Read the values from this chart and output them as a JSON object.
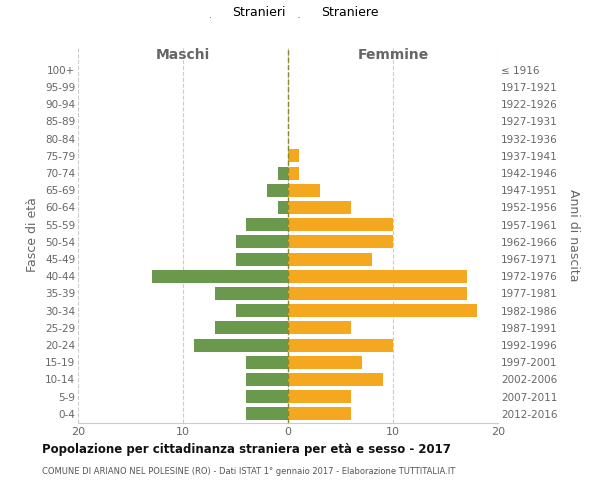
{
  "age_groups": [
    "0-4",
    "5-9",
    "10-14",
    "15-19",
    "20-24",
    "25-29",
    "30-34",
    "35-39",
    "40-44",
    "45-49",
    "50-54",
    "55-59",
    "60-64",
    "65-69",
    "70-74",
    "75-79",
    "80-84",
    "85-89",
    "90-94",
    "95-99",
    "100+"
  ],
  "birth_years": [
    "2012-2016",
    "2007-2011",
    "2002-2006",
    "1997-2001",
    "1992-1996",
    "1987-1991",
    "1982-1986",
    "1977-1981",
    "1972-1976",
    "1967-1971",
    "1962-1966",
    "1957-1961",
    "1952-1956",
    "1947-1951",
    "1942-1946",
    "1937-1941",
    "1932-1936",
    "1927-1931",
    "1922-1926",
    "1917-1921",
    "≤ 1916"
  ],
  "males": [
    4,
    4,
    4,
    4,
    9,
    7,
    5,
    7,
    13,
    5,
    5,
    4,
    1,
    2,
    1,
    0,
    0,
    0,
    0,
    0,
    0
  ],
  "females": [
    6,
    6,
    9,
    7,
    10,
    6,
    18,
    17,
    17,
    8,
    10,
    10,
    6,
    3,
    1,
    1,
    0,
    0,
    0,
    0,
    0
  ],
  "male_color": "#6a994e",
  "female_color": "#f4a820",
  "title_main": "Popolazione per cittadinanza straniera per età e sesso - 2017",
  "subtitle": "COMUNE DI ARIANO NEL POLESINE (RO) - Dati ISTAT 1° gennaio 2017 - Elaborazione TUTTITALIA.IT",
  "legend_male": "Stranieri",
  "legend_female": "Straniere",
  "header_left": "Maschi",
  "header_right": "Femmine",
  "ylabel_left": "Fasce di età",
  "ylabel_right": "Anni di nascita",
  "xlim": 20,
  "background_color": "#ffffff",
  "grid_color": "#cccccc",
  "dashed_line_color": "#888833",
  "bar_height": 0.75
}
